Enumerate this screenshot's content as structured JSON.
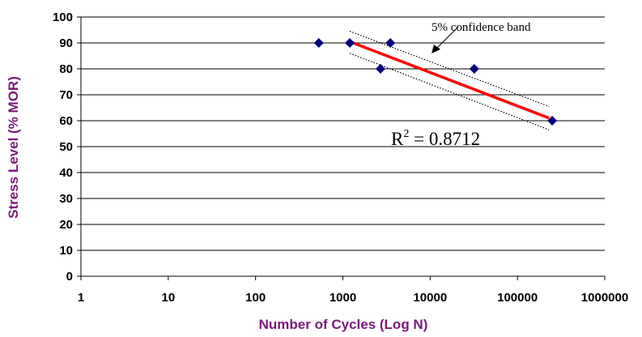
{
  "chart_data": {
    "type": "scatter",
    "xscale": "log",
    "xlim": [
      1,
      1000000
    ],
    "ylim": [
      0,
      100
    ],
    "x_ticks": [
      "1",
      "10",
      "100",
      "1000",
      "10000",
      "100000",
      "1000000"
    ],
    "y_ticks": [
      "0",
      "10",
      "20",
      "30",
      "40",
      "50",
      "60",
      "70",
      "80",
      "90",
      "100"
    ],
    "xlabel": "Number of Cycles (Log N)",
    "ylabel": "Stress Level (% MOR)",
    "grid": "horizontal",
    "series": [
      {
        "points": [
          [
            530,
            90
          ],
          [
            1200,
            90
          ],
          [
            2700,
            80
          ],
          [
            3500,
            90
          ],
          [
            32000,
            80
          ],
          [
            250000,
            60
          ]
        ]
      }
    ],
    "trendline": {
      "type": "log",
      "x": [
        1200,
        230000
      ],
      "y": [
        90.5,
        61
      ]
    },
    "confidence_band": {
      "upper": {
        "x": [
          1200,
          230000
        ],
        "y": [
          94.5,
          65.5
        ]
      },
      "lower": {
        "x": [
          1200,
          230000
        ],
        "y": [
          86,
          56.5
        ]
      }
    },
    "annotations": {
      "band_label": "5% confidence band",
      "r2_label": "R",
      "r2_sup": "2",
      "r2_value": " = 0.8712"
    },
    "colors": {
      "marker": "#00007f",
      "trendline": "#ff0000",
      "axis_title": "#7a1a7a",
      "grid": "#000000"
    }
  }
}
